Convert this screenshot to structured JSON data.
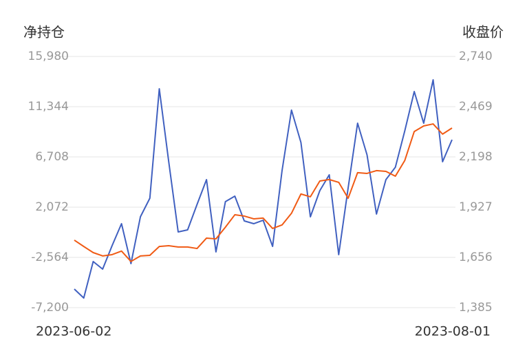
{
  "chart_data": {
    "type": "line",
    "y_label": "净持仓",
    "y2_label": "收盘价",
    "categories": [
      "2023-06-02",
      null,
      null,
      null,
      null,
      null,
      null,
      null,
      null,
      null,
      null,
      null,
      null,
      null,
      null,
      null,
      null,
      null,
      null,
      null,
      null,
      null,
      null,
      null,
      null,
      null,
      null,
      null,
      null,
      null,
      null,
      null,
      null,
      null,
      null,
      null,
      null,
      null,
      null,
      null,
      "2023-08-01"
    ],
    "series": [
      {
        "color": "#4060c0",
        "values": [
          -5486,
          -6312,
          -2946,
          -3645,
          -1485,
          547,
          -3137,
          1182,
          2897,
          12995,
          6263,
          -215,
          -25,
          2325,
          4612,
          -2057,
          2579,
          3087,
          801,
          547,
          865,
          -1549,
          5437,
          11026,
          8041,
          1182,
          3596,
          5056,
          -2311,
          3850,
          9820,
          6898,
          1436,
          4612,
          5755,
          9121,
          12741,
          9820,
          13821,
          6263,
          8295
        ]
      },
      {
        "color": "#f05a14",
        "axis": "y2",
        "values": [
          1749,
          1715,
          1682,
          1664,
          1671,
          1690,
          1634,
          1664,
          1667,
          1715,
          1719,
          1712,
          1712,
          1704,
          1760,
          1756,
          1819,
          1886,
          1879,
          1864,
          1868,
          1812,
          1831,
          1894,
          1998,
          1983,
          2068,
          2076,
          2061,
          1975,
          2113,
          2109,
          2124,
          2120,
          2094,
          2179,
          2335,
          2365,
          2376,
          2321,
          2354
        ]
      }
    ],
    "ylim": [
      -7200,
      15980
    ],
    "yticks": [
      {
        "value": -7200,
        "label": "-7,200"
      },
      {
        "value": -2564,
        "label": "-2,564"
      },
      {
        "value": 2072,
        "label": "2,072"
      },
      {
        "value": 6708,
        "label": "6,708"
      },
      {
        "value": 11344,
        "label": "11,344"
      },
      {
        "value": 15980,
        "label": "15,980"
      }
    ],
    "y2lim": [
      1385,
      2740
    ],
    "y2ticks": [
      {
        "value": 1385,
        "label": "1,385"
      },
      {
        "value": 1656,
        "label": "1,656"
      },
      {
        "value": 1927,
        "label": "1,927"
      },
      {
        "value": 2198,
        "label": "2,198"
      },
      {
        "value": 2469,
        "label": "2,469"
      },
      {
        "value": 2740,
        "label": "2,740"
      }
    ],
    "grid": true
  }
}
